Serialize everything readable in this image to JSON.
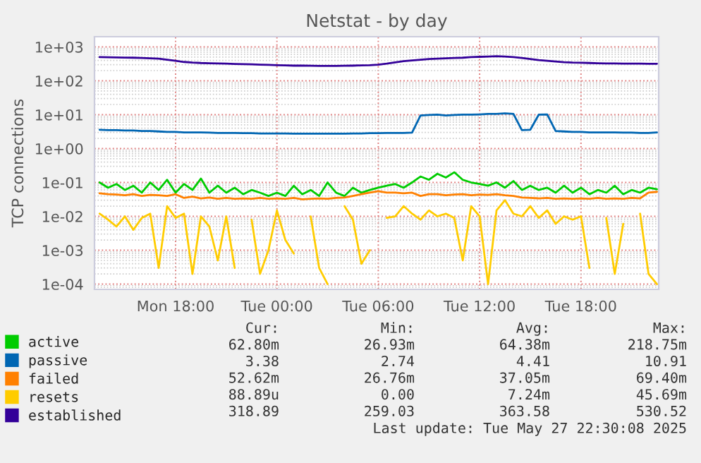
{
  "chart_data": {
    "type": "line",
    "title": "Netstat - by day",
    "ylabel": "TCP connections",
    "log": "y",
    "grid": true,
    "legend": "bottom",
    "x": [
      "2025-05-26T13:30",
      "2025-05-26T14:00",
      "2025-05-26T14:30",
      "2025-05-26T15:00",
      "2025-05-26T15:30",
      "2025-05-26T16:00",
      "2025-05-26T16:30",
      "2025-05-26T17:00",
      "2025-05-26T17:30",
      "2025-05-26T18:00",
      "2025-05-26T18:30",
      "2025-05-26T19:00",
      "2025-05-26T19:30",
      "2025-05-26T20:00",
      "2025-05-26T20:30",
      "2025-05-26T21:00",
      "2025-05-26T21:30",
      "2025-05-26T22:00",
      "2025-05-26T22:30",
      "2025-05-26T23:00",
      "2025-05-26T23:30",
      "2025-05-27T00:00",
      "2025-05-27T00:30",
      "2025-05-27T01:00",
      "2025-05-27T01:30",
      "2025-05-27T02:00",
      "2025-05-27T02:30",
      "2025-05-27T03:00",
      "2025-05-27T03:30",
      "2025-05-27T04:00",
      "2025-05-27T04:30",
      "2025-05-27T05:00",
      "2025-05-27T05:30",
      "2025-05-27T06:00",
      "2025-05-27T06:30",
      "2025-05-27T07:00",
      "2025-05-27T07:30",
      "2025-05-27T08:00",
      "2025-05-27T08:30",
      "2025-05-27T09:00",
      "2025-05-27T09:30",
      "2025-05-27T10:00",
      "2025-05-27T10:30",
      "2025-05-27T11:00",
      "2025-05-27T11:30",
      "2025-05-27T12:00",
      "2025-05-27T12:30",
      "2025-05-27T13:00",
      "2025-05-27T13:30",
      "2025-05-27T14:00",
      "2025-05-27T14:30",
      "2025-05-27T15:00",
      "2025-05-27T15:30",
      "2025-05-27T16:00",
      "2025-05-27T16:30",
      "2025-05-27T17:00",
      "2025-05-27T17:30",
      "2025-05-27T18:00",
      "2025-05-27T18:30",
      "2025-05-27T19:00",
      "2025-05-27T19:30",
      "2025-05-27T20:00",
      "2025-05-27T20:30",
      "2025-05-27T21:00",
      "2025-05-27T21:30",
      "2025-05-27T22:00",
      "2025-05-27T22:30"
    ],
    "xlim": [
      "2025-05-26T13:12",
      "2025-05-27T22:36"
    ],
    "xticks": [
      {
        "value": "2025-05-26T18:00",
        "label": "Mon 18:00"
      },
      {
        "value": "2025-05-27T00:00",
        "label": "Tue 00:00"
      },
      {
        "value": "2025-05-27T06:00",
        "label": "Tue 06:00"
      },
      {
        "value": "2025-05-27T12:00",
        "label": "Tue 12:00"
      },
      {
        "value": "2025-05-27T18:00",
        "label": "Tue 18:00"
      }
    ],
    "ylim": [
      7e-05,
      2000
    ],
    "yticks": [
      {
        "value": 0.0001,
        "label": "1e-04"
      },
      {
        "value": 0.001,
        "label": "1e-03"
      },
      {
        "value": 0.01,
        "label": "1e-02"
      },
      {
        "value": 0.1,
        "label": "1e-01"
      },
      {
        "value": 1,
        "label": "1e+00"
      },
      {
        "value": 10,
        "label": "1e+01"
      },
      {
        "value": 100,
        "label": "1e+02"
      },
      {
        "value": 1000,
        "label": "1e+03"
      }
    ],
    "series": [
      {
        "name": "active",
        "color": "#00cc00",
        "values": [
          0.1,
          0.07,
          0.09,
          0.06,
          0.08,
          0.05,
          0.1,
          0.06,
          0.12,
          0.05,
          0.09,
          0.06,
          0.13,
          0.05,
          0.08,
          0.05,
          0.07,
          0.045,
          0.06,
          0.05,
          0.04,
          0.05,
          0.04,
          0.08,
          0.045,
          0.06,
          0.04,
          0.1,
          0.05,
          0.04,
          0.07,
          0.05,
          0.06,
          0.07,
          0.08,
          0.09,
          0.07,
          0.1,
          0.15,
          0.12,
          0.18,
          0.14,
          0.2,
          0.12,
          0.1,
          0.09,
          0.08,
          0.1,
          0.07,
          0.11,
          0.06,
          0.08,
          0.06,
          0.07,
          0.05,
          0.08,
          0.05,
          0.07,
          0.045,
          0.06,
          0.05,
          0.08,
          0.045,
          0.06,
          0.05,
          0.07,
          0.063
        ]
      },
      {
        "name": "passive",
        "color": "#0066b3",
        "values": [
          3.6,
          3.5,
          3.5,
          3.4,
          3.4,
          3.3,
          3.3,
          3.2,
          3.1,
          3.1,
          3.0,
          3.0,
          3.0,
          2.95,
          2.9,
          2.9,
          2.9,
          2.85,
          2.85,
          2.8,
          2.8,
          2.8,
          2.8,
          2.75,
          2.75,
          2.75,
          2.75,
          2.74,
          2.75,
          2.75,
          2.8,
          2.8,
          2.85,
          2.85,
          2.9,
          2.9,
          2.9,
          2.95,
          9.5,
          9.8,
          10,
          9.5,
          9.8,
          10,
          10,
          10.2,
          10.5,
          10.6,
          10.9,
          10.5,
          3.5,
          3.6,
          10,
          10.2,
          3.3,
          3.2,
          3.1,
          3.1,
          3.0,
          3.0,
          3.0,
          3.0,
          2.95,
          2.95,
          2.9,
          2.9,
          3.0
        ]
      },
      {
        "name": "failed",
        "color": "#ff8000",
        "values": [
          0.048,
          0.045,
          0.044,
          0.042,
          0.045,
          0.04,
          0.043,
          0.042,
          0.04,
          0.045,
          0.035,
          0.038,
          0.034,
          0.036,
          0.033,
          0.035,
          0.033,
          0.034,
          0.033,
          0.035,
          0.033,
          0.034,
          0.033,
          0.035,
          0.032,
          0.033,
          0.034,
          0.033,
          0.035,
          0.036,
          0.04,
          0.045,
          0.05,
          0.055,
          0.05,
          0.05,
          0.048,
          0.05,
          0.04,
          0.045,
          0.045,
          0.042,
          0.044,
          0.045,
          0.042,
          0.044,
          0.043,
          0.045,
          0.042,
          0.04,
          0.036,
          0.035,
          0.034,
          0.035,
          0.033,
          0.034,
          0.033,
          0.034,
          0.033,
          0.035,
          0.033,
          0.034,
          0.033,
          0.035,
          0.034,
          0.05,
          0.053
        ]
      },
      {
        "name": "resets",
        "color": "#ffcc00",
        "values": [
          0.012,
          0.008,
          0.005,
          0.01,
          0.004,
          0.009,
          0.012,
          0.0003,
          0.02,
          0.009,
          0.012,
          0.0002,
          0.01,
          0.005,
          0.0005,
          0.01,
          0.0003,
          null,
          0.008,
          0.0002,
          0.001,
          0.015,
          0.002,
          0.0008,
          null,
          0.01,
          0.0003,
          0.0001,
          null,
          0.02,
          0.008,
          0.0004,
          0.001,
          null,
          0.009,
          0.01,
          0.02,
          0.012,
          0.008,
          0.015,
          0.01,
          0.012,
          0.009,
          0.0005,
          0.02,
          0.01,
          0.0001,
          0.015,
          0.03,
          0.012,
          0.01,
          0.02,
          0.009,
          0.015,
          0.006,
          0.01,
          0.008,
          0.01,
          0.0003,
          null,
          0.009,
          0.0002,
          0.006,
          null,
          0.012,
          0.0002,
          0.0001
        ]
      },
      {
        "name": "established",
        "color": "#330099",
        "values": [
          500,
          495,
          490,
          485,
          480,
          470,
          460,
          450,
          420,
          390,
          360,
          345,
          335,
          330,
          325,
          320,
          315,
          310,
          305,
          300,
          295,
          290,
          285,
          280,
          280,
          278,
          276,
          275,
          275,
          277,
          280,
          285,
          290,
          300,
          320,
          350,
          380,
          400,
          420,
          440,
          450,
          460,
          470,
          480,
          500,
          510,
          520,
          530,
          520,
          500,
          470,
          440,
          410,
          390,
          370,
          355,
          345,
          340,
          335,
          330,
          325,
          325,
          322,
          320,
          320,
          318,
          319
        ]
      }
    ],
    "annotations": [
      "Cur:",
      "Min:",
      "Avg:",
      "Max:",
      "62.80m",
      "26.93m",
      "64.38m",
      "218.75m",
      "3.38",
      "2.74",
      "4.41",
      "10.91",
      "52.62m",
      "26.76m",
      "37.05m",
      "69.40m",
      "88.89u",
      "0.00",
      "7.24m",
      "45.69m",
      "318.89",
      "259.03",
      "363.58",
      "530.52",
      "Last update: Tue May 27 22:30:08 2025"
    ]
  }
}
